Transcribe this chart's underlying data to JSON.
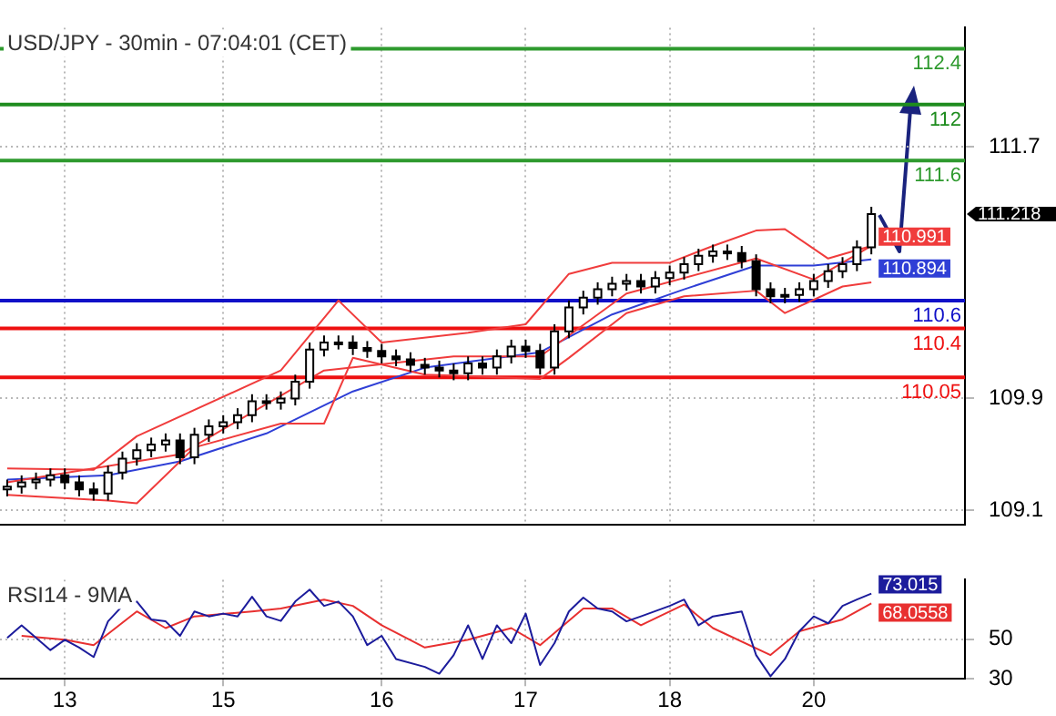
{
  "chart_data": [
    {
      "type": "candlestick",
      "title": "USD/JPY - 30min - 07:04:01 (CET)",
      "categories": [
        null,
        null,
        null,
        null,
        "13",
        null,
        null,
        null,
        null,
        null,
        null,
        null,
        null,
        null,
        null,
        "15",
        null,
        null,
        null,
        null,
        null,
        null,
        null,
        null,
        null,
        null,
        "16",
        null,
        null,
        null,
        null,
        null,
        null,
        null,
        null,
        null,
        "17",
        null,
        null,
        null,
        null,
        null,
        null,
        null,
        null,
        null,
        "18",
        null,
        null,
        null,
        null,
        null,
        null,
        null,
        null,
        null,
        "20",
        null,
        null,
        null,
        null,
        null,
        null,
        null,
        null,
        null,
        null
      ],
      "ohlc": [
        [
          109.25,
          109.32,
          109.2,
          109.27
        ],
        [
          109.27,
          109.35,
          109.22,
          109.3
        ],
        [
          109.3,
          109.37,
          109.25,
          109.32
        ],
        [
          109.32,
          109.4,
          109.27,
          109.35
        ],
        [
          109.35,
          109.4,
          109.25,
          109.3
        ],
        [
          109.3,
          109.35,
          109.2,
          109.25
        ],
        [
          109.25,
          109.3,
          109.17,
          109.22
        ],
        [
          109.22,
          109.42,
          109.17,
          109.37
        ],
        [
          109.37,
          109.52,
          109.32,
          109.47
        ],
        [
          109.47,
          109.58,
          109.42,
          109.53
        ],
        [
          109.53,
          109.62,
          109.48,
          109.57
        ],
        [
          109.57,
          109.65,
          109.52,
          109.6
        ],
        [
          109.6,
          109.65,
          109.43,
          109.48
        ],
        [
          109.48,
          109.69,
          109.43,
          109.64
        ],
        [
          109.64,
          109.75,
          109.59,
          109.7
        ],
        [
          109.7,
          109.78,
          109.65,
          109.73
        ],
        [
          109.73,
          109.83,
          109.68,
          109.78
        ],
        [
          109.78,
          109.93,
          109.73,
          109.88
        ],
        [
          109.88,
          109.93,
          109.82,
          109.87
        ],
        [
          109.87,
          109.95,
          109.82,
          109.9
        ],
        [
          109.9,
          110.07,
          109.85,
          110.02
        ],
        [
          110.02,
          110.3,
          109.97,
          110.25
        ],
        [
          110.25,
          110.35,
          110.2,
          110.3
        ],
        [
          110.3,
          110.35,
          110.25,
          110.3
        ],
        [
          110.3,
          110.35,
          110.21,
          110.26
        ],
        [
          110.26,
          110.31,
          110.19,
          110.24
        ],
        [
          110.24,
          110.29,
          110.15,
          110.2
        ],
        [
          110.2,
          110.25,
          110.13,
          110.18
        ],
        [
          110.18,
          110.23,
          110.09,
          110.14
        ],
        [
          110.14,
          110.19,
          110.07,
          110.12
        ],
        [
          110.12,
          110.17,
          110.05,
          110.1
        ],
        [
          110.1,
          110.15,
          110.03,
          110.08
        ],
        [
          110.08,
          110.2,
          110.03,
          110.15
        ],
        [
          110.15,
          110.2,
          110.07,
          110.12
        ],
        [
          110.12,
          110.25,
          110.07,
          110.2
        ],
        [
          110.2,
          110.32,
          110.15,
          110.27
        ],
        [
          110.27,
          110.32,
          110.19,
          110.24
        ],
        [
          110.24,
          110.29,
          110.07,
          110.12
        ],
        [
          110.12,
          110.43,
          110.07,
          110.38
        ],
        [
          110.38,
          110.6,
          110.33,
          110.55
        ],
        [
          110.55,
          110.67,
          110.5,
          110.62
        ],
        [
          110.62,
          110.73,
          110.57,
          110.68
        ],
        [
          110.68,
          110.77,
          110.63,
          110.72
        ],
        [
          110.72,
          110.79,
          110.67,
          110.74
        ],
        [
          110.74,
          110.79,
          110.65,
          110.7
        ],
        [
          110.7,
          110.81,
          110.65,
          110.76
        ],
        [
          110.76,
          110.85,
          110.71,
          110.8
        ],
        [
          110.8,
          110.91,
          110.75,
          110.86
        ],
        [
          110.86,
          110.97,
          110.81,
          110.92
        ],
        [
          110.92,
          111,
          110.87,
          110.95
        ],
        [
          110.95,
          111,
          110.89,
          110.94
        ],
        [
          110.94,
          110.99,
          110.83,
          110.88
        ],
        [
          110.88,
          110.93,
          110.63,
          110.68
        ],
        [
          110.68,
          110.73,
          110.58,
          110.63
        ],
        [
          110.63,
          110.69,
          110.58,
          110.64
        ],
        [
          110.64,
          110.73,
          110.59,
          110.68
        ],
        [
          110.68,
          110.79,
          110.63,
          110.74
        ],
        [
          110.74,
          110.86,
          110.69,
          110.81
        ],
        [
          110.81,
          110.91,
          110.76,
          110.86
        ],
        [
          110.86,
          111.03,
          110.81,
          110.98
        ],
        [
          110.98,
          111.27,
          110.93,
          111.218
        ],
        null,
        null,
        null,
        null,
        null,
        null
      ],
      "value_labels": [
        null,
        null,
        null,
        null,
        null,
        null,
        null,
        null,
        null,
        null,
        null,
        null,
        null,
        null,
        null,
        null,
        null,
        null,
        null,
        null,
        null,
        null,
        null,
        null,
        null,
        null,
        null,
        null,
        null,
        null,
        null,
        null,
        null,
        null,
        null,
        null,
        null,
        null,
        null,
        null,
        null,
        null,
        null,
        null,
        null,
        null,
        null,
        null,
        null,
        null,
        null,
        null,
        null,
        null,
        null,
        null,
        null,
        null,
        null,
        null,
        "111.218",
        null,
        null,
        null,
        null,
        null,
        null
      ],
      "series": [
        {
          "type": "line",
          "color": "#f03c3c",
          "values": [
            109.4,
            null,
            null,
            null,
            null,
            null,
            109.39,
            null,
            null,
            109.63,
            null,
            null,
            null,
            null,
            null,
            null,
            null,
            null,
            null,
            110.1,
            null,
            null,
            null,
            110.6,
            null,
            null,
            110.3,
            null,
            null,
            null,
            null,
            null,
            110.37,
            null,
            null,
            null,
            110.43,
            null,
            null,
            110.79,
            null,
            null,
            110.87,
            null,
            null,
            null,
            110.87,
            null,
            null,
            110.99,
            null,
            null,
            111.1,
            null,
            111.11,
            null,
            null,
            110.9,
            null,
            null,
            110.99,
            null,
            null,
            null,
            null,
            null,
            null
          ]
        },
        {
          "type": "line",
          "color": "#f03c3c",
          "values": [
            109.3,
            null,
            null,
            null,
            null,
            null,
            null,
            null,
            null,
            null,
            null,
            null,
            109.5,
            null,
            null,
            null,
            null,
            null,
            null,
            null,
            null,
            null,
            110.1,
            null,
            null,
            null,
            null,
            null,
            null,
            null,
            null,
            110.2,
            null,
            null,
            null,
            null,
            null,
            110.2,
            null,
            null,
            null,
            null,
            null,
            110.65,
            null,
            null,
            null,
            null,
            null,
            null,
            null,
            null,
            110.9,
            null,
            null,
            null,
            110.75,
            null,
            null,
            null,
            110.991,
            null,
            null,
            null,
            null,
            null,
            null
          ],
          "value_labels": [
            null,
            null,
            null,
            null,
            null,
            null,
            null,
            null,
            null,
            null,
            null,
            null,
            null,
            null,
            null,
            null,
            null,
            null,
            null,
            null,
            null,
            null,
            null,
            null,
            null,
            null,
            null,
            null,
            null,
            null,
            null,
            null,
            null,
            null,
            null,
            null,
            null,
            null,
            null,
            null,
            null,
            null,
            null,
            null,
            null,
            null,
            null,
            null,
            null,
            null,
            null,
            null,
            null,
            null,
            null,
            null,
            null,
            null,
            null,
            null,
            "110.991",
            null,
            null,
            null,
            null,
            null,
            null
          ]
        },
        {
          "type": "line",
          "color": "#f03c3c",
          "values": [
            109.21,
            null,
            null,
            null,
            null,
            null,
            null,
            109.17,
            null,
            109.15,
            null,
            null,
            null,
            109.55,
            null,
            null,
            null,
            null,
            null,
            109.72,
            null,
            null,
            109.72,
            null,
            110.19,
            null,
            null,
            null,
            null,
            110.07,
            null,
            null,
            null,
            null,
            null,
            null,
            null,
            110.04,
            null,
            110.19,
            null,
            null,
            null,
            110.51,
            null,
            null,
            null,
            110.63,
            null,
            null,
            null,
            null,
            110.67,
            null,
            110.51,
            null,
            null,
            null,
            110.7,
            null,
            110.73,
            null,
            null,
            null,
            null,
            null,
            null
          ]
        },
        {
          "type": "line",
          "color": "#2f3fd6",
          "values": [
            109.32,
            null,
            null,
            null,
            null,
            null,
            null,
            109.35,
            null,
            null,
            null,
            null,
            109.45,
            null,
            null,
            null,
            null,
            null,
            109.65,
            null,
            null,
            null,
            null,
            null,
            109.95,
            null,
            null,
            null,
            null,
            110.12,
            null,
            null,
            null,
            null,
            null,
            null,
            null,
            110.23,
            null,
            null,
            null,
            null,
            110.5,
            null,
            null,
            null,
            null,
            110.68,
            null,
            null,
            null,
            null,
            110.85,
            null,
            null,
            null,
            110.85,
            null,
            null,
            null,
            110.894,
            null,
            null,
            null,
            null,
            null,
            null
          ],
          "value_labels": [
            null,
            null,
            null,
            null,
            null,
            null,
            null,
            null,
            null,
            null,
            null,
            null,
            null,
            null,
            null,
            null,
            null,
            null,
            null,
            null,
            null,
            null,
            null,
            null,
            null,
            null,
            null,
            null,
            null,
            null,
            null,
            null,
            null,
            null,
            null,
            null,
            null,
            null,
            null,
            null,
            null,
            null,
            null,
            null,
            null,
            null,
            null,
            null,
            null,
            null,
            null,
            null,
            null,
            null,
            null,
            null,
            null,
            null,
            null,
            null,
            "110.894",
            null,
            null,
            null,
            null,
            null,
            null
          ]
        }
      ],
      "ylim": [
        109,
        112.55
      ],
      "yticks": [
        109.1,
        109.9,
        111.7
      ],
      "grid": true,
      "tick_labels": "y",
      "ref_lines": [
        {
          "axis": "y",
          "value": 112.4,
          "label": "112.4",
          "color": "#2e9a2e"
        },
        {
          "axis": "y",
          "value": 112,
          "label": "112",
          "color": "#1e8c1e"
        },
        {
          "axis": "y",
          "value": 111.6,
          "label": "111.6",
          "color": "#2e9a2e"
        },
        {
          "axis": "y",
          "value": 110.6,
          "label": "110.6",
          "color": "#1010c8"
        },
        {
          "axis": "y",
          "value": 110.4,
          "label": "110.4",
          "color": "#ee1010"
        },
        {
          "axis": "y",
          "value": 110.05,
          "label": "110.05",
          "color": "#ee1010"
        }
      ]
    },
    {
      "type": "line",
      "title": "RSI14 - 9MA",
      "categories": [
        null,
        null,
        null,
        null,
        "13",
        null,
        null,
        null,
        null,
        null,
        null,
        null,
        null,
        null,
        null,
        "15",
        null,
        null,
        null,
        null,
        null,
        null,
        null,
        null,
        null,
        null,
        "16",
        null,
        null,
        null,
        null,
        null,
        null,
        null,
        null,
        null,
        "17",
        null,
        null,
        null,
        null,
        null,
        null,
        null,
        null,
        null,
        "18",
        null,
        null,
        null,
        null,
        null,
        null,
        null,
        null,
        null,
        "20",
        null,
        null,
        null,
        null,
        null,
        null,
        null,
        null,
        null,
        null
      ],
      "series": [
        {
          "color": "#1c1c9c",
          "values": [
            50.7,
            57,
            null,
            44.5,
            49.7,
            45.8,
            41,
            59,
            66.8,
            69,
            60,
            59,
            51.7,
            64,
            61.5,
            62.9,
            61.5,
            71.4,
            61.5,
            59.2,
            69,
            75,
            66.8,
            69,
            61.5,
            47,
            51.7,
            40,
            null,
            36,
            32.6,
            42,
            57,
            40,
            57,
            48,
            62.9,
            37,
            48,
            64,
            71,
            65.5,
            64,
            59,
            61.5,
            null,
            66.8,
            70,
            57,
            61.5,
            null,
            64,
            42,
            31.3,
            40,
            54,
            61.5,
            58,
            66.8,
            70,
            73.015,
            null,
            null,
            null,
            null,
            null,
            null
          ],
          "value_labels": [
            null,
            null,
            null,
            null,
            null,
            null,
            null,
            null,
            null,
            null,
            null,
            null,
            null,
            null,
            null,
            null,
            null,
            null,
            null,
            null,
            null,
            null,
            null,
            null,
            null,
            null,
            null,
            null,
            null,
            null,
            null,
            null,
            null,
            null,
            null,
            null,
            null,
            null,
            null,
            null,
            null,
            null,
            null,
            null,
            null,
            null,
            null,
            null,
            null,
            null,
            null,
            null,
            null,
            null,
            null,
            null,
            null,
            null,
            null,
            null,
            "73.015",
            null,
            null,
            null,
            null,
            null,
            null
          ]
        },
        {
          "color": "#e83030",
          "values": [
            null,
            51.7,
            null,
            null,
            49.7,
            null,
            47,
            null,
            null,
            64,
            null,
            55.6,
            null,
            61.5,
            null,
            null,
            null,
            64,
            null,
            65.5,
            null,
            null,
            70,
            null,
            66.8,
            null,
            57,
            null,
            null,
            45.8,
            null,
            null,
            49.7,
            null,
            null,
            55.6,
            null,
            47,
            null,
            null,
            65.5,
            null,
            65.5,
            null,
            57,
            null,
            null,
            67.5,
            null,
            55.6,
            null,
            null,
            null,
            42,
            null,
            54,
            null,
            null,
            60,
            null,
            68.0558,
            null,
            null,
            null,
            null,
            null,
            null
          ],
          "value_labels": [
            null,
            null,
            null,
            null,
            null,
            null,
            null,
            null,
            null,
            null,
            null,
            null,
            null,
            null,
            null,
            null,
            null,
            null,
            null,
            null,
            null,
            null,
            null,
            null,
            null,
            null,
            null,
            null,
            null,
            null,
            null,
            null,
            null,
            null,
            null,
            null,
            null,
            null,
            null,
            null,
            null,
            null,
            null,
            null,
            null,
            null,
            null,
            null,
            null,
            null,
            null,
            null,
            null,
            null,
            null,
            null,
            null,
            null,
            null,
            null,
            "68.0558",
            null,
            null,
            null,
            null,
            null,
            null
          ]
        }
      ],
      "ylim": [
        30,
        80
      ],
      "yticks": [
        30,
        50
      ],
      "grid": true
    }
  ]
}
